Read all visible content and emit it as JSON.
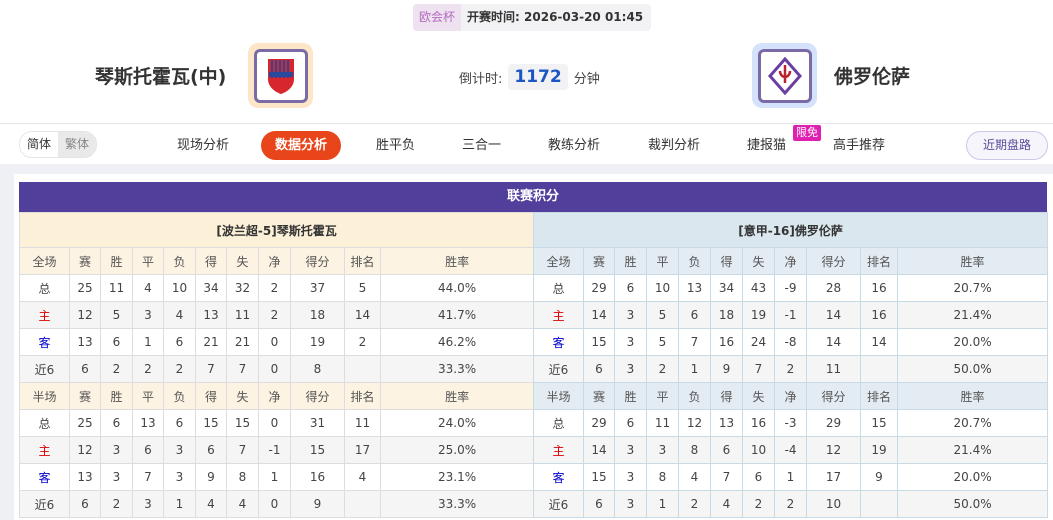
{
  "match": {
    "league": "欧会杯",
    "kickoff_label": "开赛时间:",
    "kickoff": "2026-03-20 01:45",
    "countdown_label": "倒计时:",
    "countdown": "1172",
    "countdown_unit": "分钟"
  },
  "home_team": {
    "name": "琴斯托霍瓦(中)",
    "logo": "raków-crest"
  },
  "away_team": {
    "name": "佛罗伦萨",
    "logo": "fiorentina-crest"
  },
  "nav": {
    "lang": [
      "简体",
      "繁体"
    ],
    "tabs": [
      "现场分析",
      "数据分析",
      "胜平负",
      "三合一",
      "教练分析",
      "裁判分析",
      "捷报猫",
      "高手推荐"
    ],
    "active": "数据分析",
    "badge": "限免",
    "recent": "近期盘路"
  },
  "standings": {
    "title": "联赛积分",
    "tables": [
      {
        "caption": "[波兰超-5]琴斯托霍瓦",
        "sections": [
          {
            "header": [
              "全场",
              "赛",
              "胜",
              "平",
              "负",
              "得",
              "失",
              "净",
              "得分",
              "排名",
              "胜率"
            ],
            "rows": [
              [
                "总",
                "25",
                "11",
                "4",
                "10",
                "34",
                "32",
                "2",
                "37",
                "5",
                "44.0%"
              ],
              [
                "主",
                "12",
                "5",
                "3",
                "4",
                "13",
                "11",
                "2",
                "18",
                "14",
                "41.7%"
              ],
              [
                "客",
                "13",
                "6",
                "1",
                "6",
                "21",
                "21",
                "0",
                "19",
                "2",
                "46.2%"
              ],
              [
                "近6",
                "6",
                "2",
                "2",
                "2",
                "7",
                "7",
                "0",
                "8",
                "",
                "33.3%"
              ]
            ]
          },
          {
            "header": [
              "半场",
              "赛",
              "胜",
              "平",
              "负",
              "得",
              "失",
              "净",
              "得分",
              "排名",
              "胜率"
            ],
            "rows": [
              [
                "总",
                "25",
                "6",
                "13",
                "6",
                "15",
                "15",
                "0",
                "31",
                "11",
                "24.0%"
              ],
              [
                "主",
                "12",
                "3",
                "6",
                "3",
                "6",
                "7",
                "-1",
                "15",
                "17",
                "25.0%"
              ],
              [
                "客",
                "13",
                "3",
                "7",
                "3",
                "9",
                "8",
                "1",
                "16",
                "4",
                "23.1%"
              ],
              [
                "近6",
                "6",
                "2",
                "3",
                "1",
                "4",
                "4",
                "0",
                "9",
                "",
                "33.3%"
              ]
            ]
          }
        ]
      },
      {
        "caption": "[意甲-16]佛罗伦萨",
        "sections": [
          {
            "header": [
              "全场",
              "赛",
              "胜",
              "平",
              "负",
              "得",
              "失",
              "净",
              "得分",
              "排名",
              "胜率"
            ],
            "rows": [
              [
                "总",
                "29",
                "6",
                "10",
                "13",
                "34",
                "43",
                "-9",
                "28",
                "16",
                "20.7%"
              ],
              [
                "主",
                "14",
                "3",
                "5",
                "6",
                "18",
                "19",
                "-1",
                "14",
                "16",
                "21.4%"
              ],
              [
                "客",
                "15",
                "3",
                "5",
                "7",
                "16",
                "24",
                "-8",
                "14",
                "14",
                "20.0%"
              ],
              [
                "近6",
                "6",
                "3",
                "2",
                "1",
                "9",
                "7",
                "2",
                "11",
                "",
                "50.0%"
              ]
            ]
          },
          {
            "header": [
              "半场",
              "赛",
              "胜",
              "平",
              "负",
              "得",
              "失",
              "净",
              "得分",
              "排名",
              "胜率"
            ],
            "rows": [
              [
                "总",
                "29",
                "6",
                "11",
                "12",
                "13",
                "16",
                "-3",
                "29",
                "15",
                "20.7%"
              ],
              [
                "主",
                "14",
                "3",
                "3",
                "8",
                "6",
                "10",
                "-4",
                "12",
                "19",
                "21.4%"
              ],
              [
                "客",
                "15",
                "3",
                "8",
                "4",
                "7",
                "6",
                "1",
                "17",
                "9",
                "20.0%"
              ],
              [
                "近6",
                "6",
                "3",
                "1",
                "2",
                "4",
                "2",
                "2",
                "10",
                "",
                "50.0%"
              ]
            ]
          }
        ]
      }
    ]
  },
  "colors": {
    "accent": "#e8461a",
    "header": "#523f9c",
    "home": "#dd0000",
    "away": "#0000cc"
  }
}
